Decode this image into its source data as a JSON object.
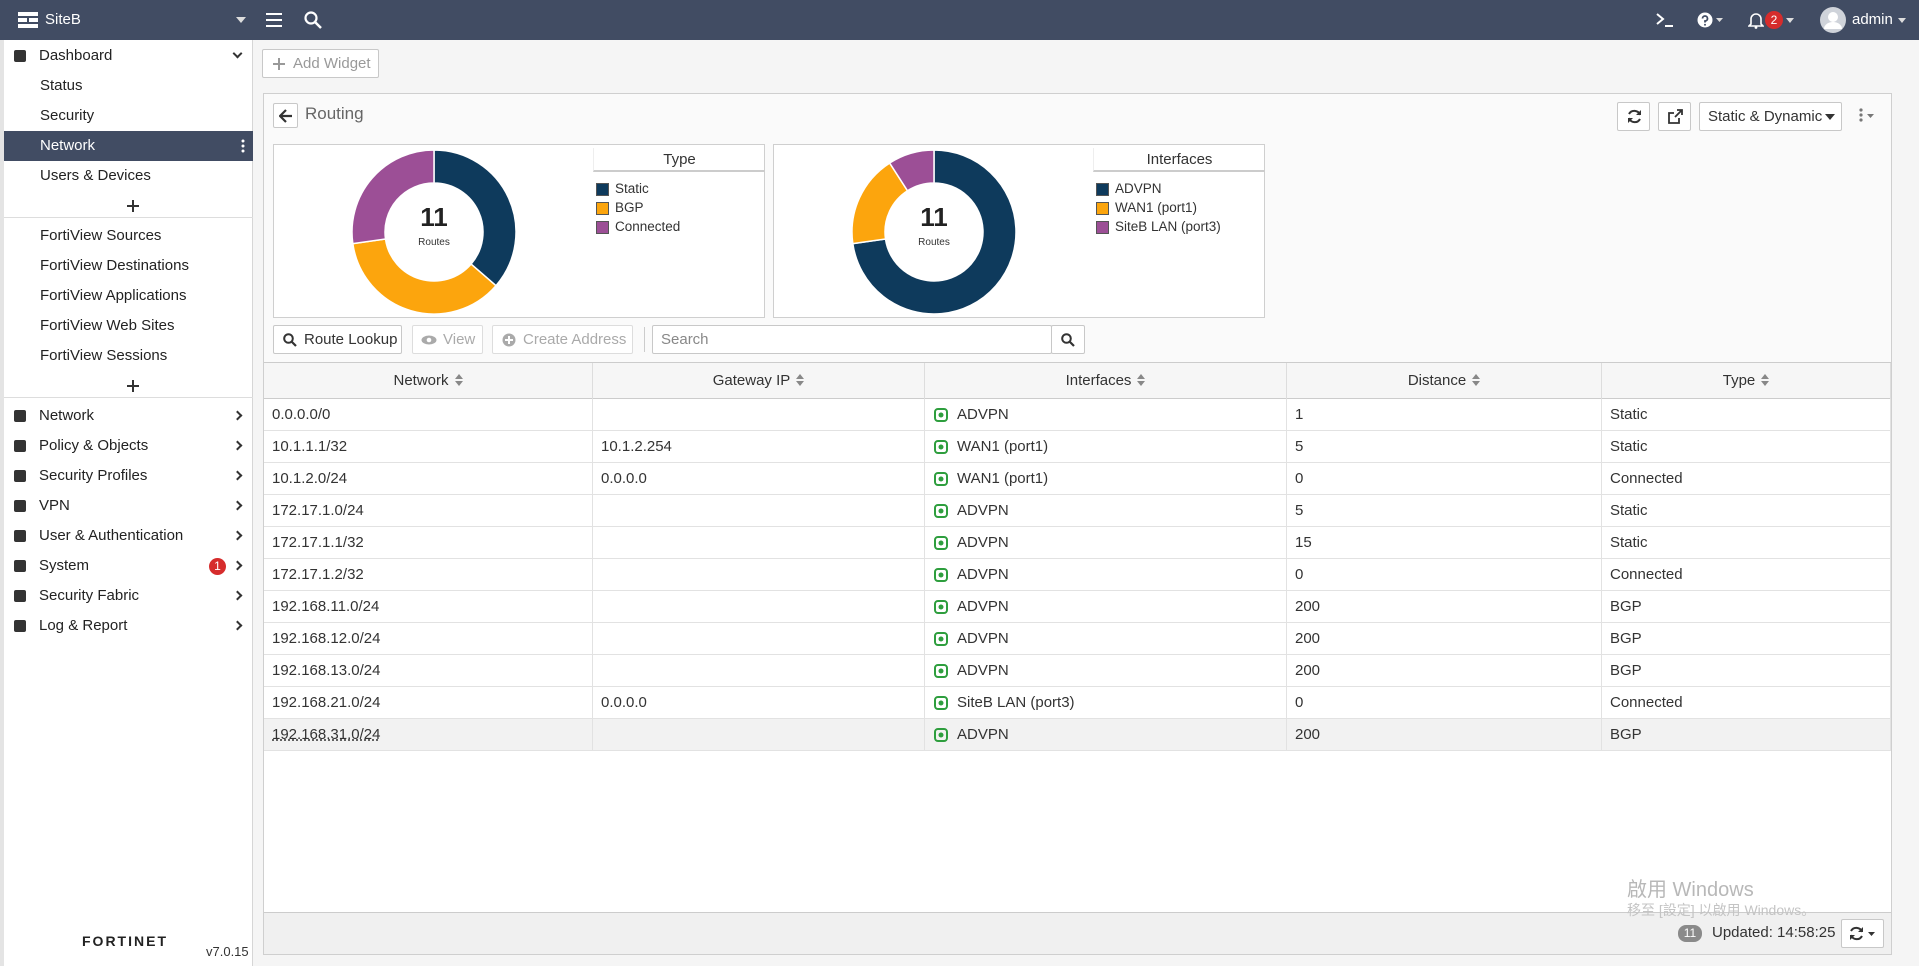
{
  "topbar": {
    "device": "SiteB",
    "user": "admin",
    "notifications": 2
  },
  "sidebar": {
    "dashboard": {
      "label": "Dashboard",
      "items": [
        "Status",
        "Security",
        "Network",
        "Users & Devices"
      ]
    },
    "fortiview": [
      "FortiView Sources",
      "FortiView Destinations",
      "FortiView Applications",
      "FortiView Web Sites",
      "FortiView Sessions"
    ],
    "menu": [
      {
        "label": "Network"
      },
      {
        "label": "Policy & Objects"
      },
      {
        "label": "Security Profiles"
      },
      {
        "label": "VPN"
      },
      {
        "label": "User & Authentication"
      },
      {
        "label": "System",
        "badge": 1
      },
      {
        "label": "Security Fabric"
      },
      {
        "label": "Log & Report"
      }
    ],
    "brand": "FORTINET",
    "version": "v7.0.15"
  },
  "toolbar": {
    "add_widget": "Add Widget"
  },
  "widget": {
    "title": "Routing",
    "filter": "Static & Dynamic",
    "charts": [
      {
        "legend_title": "Type",
        "total": 11,
        "total_label": "Routes",
        "items": [
          {
            "label": "Static",
            "color": "#0e3a5c",
            "value": 4
          },
          {
            "label": "BGP",
            "color": "#fca50d",
            "value": 4
          },
          {
            "label": "Connected",
            "color": "#9c4f96",
            "value": 3
          }
        ]
      },
      {
        "legend_title": "Interfaces",
        "total": 11,
        "total_label": "Routes",
        "items": [
          {
            "label": "ADVPN",
            "color": "#0e3a5c",
            "value": 8
          },
          {
            "label": "WAN1 (port1)",
            "color": "#fca50d",
            "value": 2
          },
          {
            "label": "SiteB LAN (port3)",
            "color": "#9c4f96",
            "value": 1
          }
        ]
      }
    ],
    "actions": {
      "route_lookup": "Route Lookup",
      "view": "View",
      "create_address": "Create Address",
      "search_placeholder": "Search"
    },
    "table": {
      "columns": [
        "Network",
        "Gateway IP",
        "Interfaces",
        "Distance",
        "Type"
      ],
      "rows": [
        [
          "0.0.0.0/0",
          "",
          "ADVPN",
          1,
          "Static"
        ],
        [
          "10.1.1.1/32",
          "10.1.2.254",
          "WAN1 (port1)",
          5,
          "Static"
        ],
        [
          "10.1.2.0/24",
          "0.0.0.0",
          "WAN1 (port1)",
          0,
          "Connected"
        ],
        [
          "172.17.1.0/24",
          "",
          "ADVPN",
          5,
          "Static"
        ],
        [
          "172.17.1.1/32",
          "",
          "ADVPN",
          15,
          "Static"
        ],
        [
          "172.17.1.2/32",
          "",
          "ADVPN",
          0,
          "Connected"
        ],
        [
          "192.168.11.0/24",
          "",
          "ADVPN",
          200,
          "BGP"
        ],
        [
          "192.168.12.0/24",
          "",
          "ADVPN",
          200,
          "BGP"
        ],
        [
          "192.168.13.0/24",
          "",
          "ADVPN",
          200,
          "BGP"
        ],
        [
          "192.168.21.0/24",
          "0.0.0.0",
          "SiteB LAN (port3)",
          0,
          "Connected"
        ],
        [
          "192.168.31.0/24",
          "",
          "ADVPN",
          200,
          "BGP"
        ]
      ]
    },
    "footer": {
      "count": 11,
      "updated": "Updated: 14:58:25"
    }
  },
  "watermark": {
    "title": "啟用 Windows",
    "subtitle": "移至 [設定] 以啟用 Windows。"
  }
}
